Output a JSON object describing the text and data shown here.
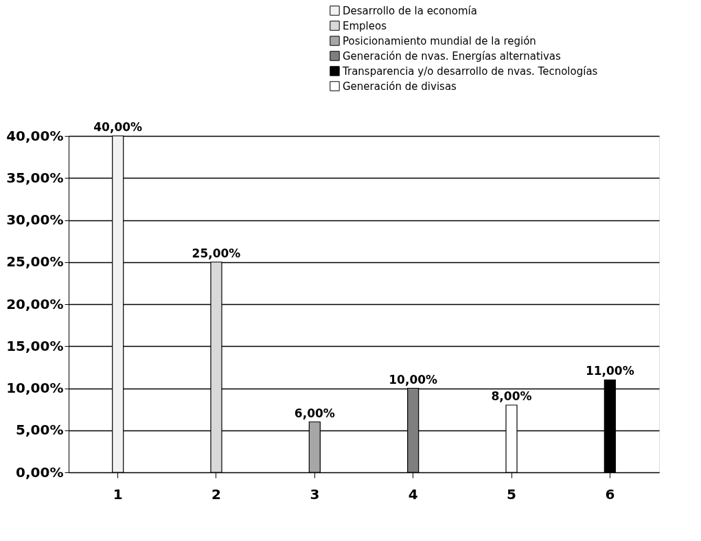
{
  "chart_data": {
    "type": "bar",
    "categories": [
      "1",
      "2",
      "3",
      "4",
      "5",
      "6"
    ],
    "series": [
      {
        "name": "Desarrollo de la economía",
        "color": "#f2f2f2",
        "values": [
          40,
          null,
          null,
          null,
          null,
          null
        ],
        "value_labels": [
          "40,00%",
          null,
          null,
          null,
          null,
          null
        ]
      },
      {
        "name": "Empleos",
        "color": "#d9d9d9",
        "values": [
          null,
          25,
          null,
          null,
          null,
          null
        ],
        "value_labels": [
          null,
          "25,00%",
          null,
          null,
          null,
          null
        ]
      },
      {
        "name": "Posicionamiento mundial de la región",
        "color": "#a6a6a6",
        "values": [
          null,
          null,
          6,
          null,
          null,
          null
        ],
        "value_labels": [
          null,
          null,
          "6,00%",
          null,
          null,
          null
        ]
      },
      {
        "name": "Generación de nvas. Energías alternativas",
        "color": "#7f7f7f",
        "values": [
          null,
          null,
          null,
          10,
          null,
          null
        ],
        "value_labels": [
          null,
          null,
          null,
          "10,00%",
          null,
          null
        ]
      },
      {
        "name": "Transparencia y/o desarrollo de nvas. Tecnologías",
        "color": "#000000",
        "values": [
          null,
          null,
          null,
          null,
          null,
          11
        ],
        "value_labels": [
          null,
          null,
          null,
          null,
          null,
          "11,00%"
        ]
      },
      {
        "name": "Generación de divisas",
        "color": "#ffffff",
        "values": [
          null,
          null,
          null,
          null,
          8,
          null
        ],
        "value_labels": [
          null,
          null,
          null,
          null,
          "8,00%",
          null
        ]
      }
    ],
    "ylim": [
      0,
      40
    ],
    "yticks": [
      {
        "value": 0,
        "label": "0,00%"
      },
      {
        "value": 5,
        "label": "5,00%"
      },
      {
        "value": 10,
        "label": "10,00%"
      },
      {
        "value": 15,
        "label": "15,00%"
      },
      {
        "value": 20,
        "label": "20,00%"
      },
      {
        "value": 25,
        "label": "25,00%"
      },
      {
        "value": 30,
        "label": "30,00%"
      },
      {
        "value": 35,
        "label": "35,00%"
      },
      {
        "value": 40,
        "label": "40,00%"
      }
    ],
    "grid": "y",
    "legend": "top right"
  }
}
